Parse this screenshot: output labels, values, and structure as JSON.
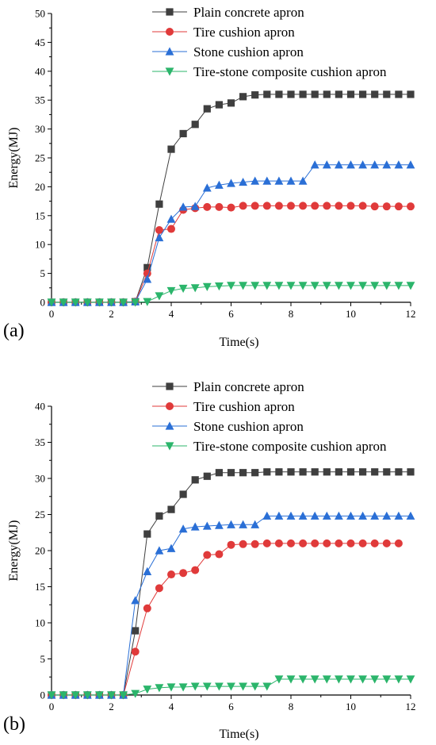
{
  "chart_data": [
    {
      "type": "line",
      "panel_label": "(a)",
      "xlabel": "Time(s)",
      "ylabel": "Energy(MJ)",
      "xlim": [
        0,
        12
      ],
      "ylim": [
        0,
        50
      ],
      "xticks": [
        0,
        2,
        4,
        6,
        8,
        10,
        12
      ],
      "yticks": [
        0,
        5,
        10,
        15,
        20,
        25,
        30,
        35,
        40,
        45,
        50
      ],
      "legend_position": "top-right",
      "grid": false,
      "x": [
        0,
        0.4,
        0.8,
        1.2,
        1.6,
        2.0,
        2.4,
        2.8,
        3.2,
        3.6,
        4.0,
        4.4,
        4.8,
        5.2,
        5.6,
        6.0,
        6.4,
        6.8,
        7.2,
        7.6,
        8.0,
        8.4,
        8.8,
        9.2,
        9.6,
        10.0,
        10.4,
        10.8,
        11.2,
        11.6,
        12.0
      ],
      "series": [
        {
          "name": "Plain concrete apron",
          "color": "#3f3f3f",
          "marker": "square",
          "values": [
            0,
            0,
            0,
            0,
            0,
            0,
            0,
            0.1,
            6.0,
            17.0,
            26.5,
            29.2,
            30.8,
            33.5,
            34.2,
            34.5,
            35.6,
            35.9,
            36.0,
            36.0,
            36.0,
            36.0,
            36.0,
            36.0,
            36.0,
            36.0,
            36.0,
            36.0,
            36.0,
            36.0,
            36.0
          ]
        },
        {
          "name": "Tire cushion apron",
          "color": "#e03a3a",
          "marker": "circle",
          "values": [
            0,
            0,
            0,
            0,
            0,
            0,
            0,
            0.1,
            5.0,
            12.5,
            12.7,
            16.0,
            16.3,
            16.5,
            16.5,
            16.4,
            16.7,
            16.7,
            16.7,
            16.7,
            16.7,
            16.7,
            16.7,
            16.7,
            16.7,
            16.7,
            16.7,
            16.6,
            16.6,
            16.6,
            16.6
          ]
        },
        {
          "name": "Stone cushion apron",
          "color": "#2a6fd6",
          "marker": "triangle-up",
          "values": [
            0,
            0,
            0,
            0,
            0,
            0,
            0,
            0.1,
            4.0,
            11.2,
            14.4,
            16.5,
            16.6,
            19.8,
            20.3,
            20.6,
            20.8,
            21.0,
            21.0,
            21.0,
            21.0,
            21.0,
            23.8,
            23.8,
            23.8,
            23.8,
            23.8,
            23.8,
            23.8,
            23.8,
            23.8
          ]
        },
        {
          "name": "Tire-stone composite cushion apron",
          "color": "#2bb56b",
          "marker": "triangle-down",
          "values": [
            0,
            0,
            0,
            0,
            0,
            0,
            0,
            0,
            0.1,
            1.1,
            2.0,
            2.4,
            2.5,
            2.7,
            2.8,
            2.9,
            2.9,
            2.9,
            2.9,
            2.9,
            2.9,
            2.9,
            2.9,
            2.9,
            2.9,
            2.9,
            2.9,
            2.9,
            2.9,
            2.9,
            2.9
          ]
        }
      ]
    },
    {
      "type": "line",
      "panel_label": "(b)",
      "xlabel": "Time(s)",
      "ylabel": "Energy(MJ)",
      "xlim": [
        0,
        12
      ],
      "ylim": [
        0,
        40
      ],
      "xticks": [
        0,
        2,
        4,
        6,
        8,
        10,
        12
      ],
      "yticks": [
        0,
        5,
        10,
        15,
        20,
        25,
        30,
        35,
        40
      ],
      "legend_position": "top-right",
      "grid": false,
      "x": [
        0,
        0.4,
        0.8,
        1.2,
        1.6,
        2.0,
        2.4,
        2.8,
        3.2,
        3.6,
        4.0,
        4.4,
        4.8,
        5.2,
        5.6,
        6.0,
        6.4,
        6.8,
        7.2,
        7.6,
        8.0,
        8.4,
        8.8,
        9.2,
        9.6,
        10.0,
        10.4,
        10.8,
        11.2,
        11.6,
        12.0
      ],
      "series": [
        {
          "name": "Plain concrete apron",
          "color": "#3f3f3f",
          "marker": "square",
          "values": [
            0,
            0,
            0,
            0,
            0,
            0,
            0,
            8.9,
            22.3,
            24.8,
            25.7,
            27.8,
            29.8,
            30.3,
            30.8,
            30.8,
            30.8,
            30.8,
            30.9,
            30.9,
            30.9,
            30.9,
            30.9,
            30.9,
            30.9,
            30.9,
            30.9,
            30.9,
            30.9,
            30.9,
            30.9
          ]
        },
        {
          "name": "Tire cushion apron",
          "color": "#e03a3a",
          "marker": "circle",
          "values": [
            0,
            0,
            0,
            0,
            0,
            0,
            0,
            6.0,
            12.0,
            14.8,
            16.7,
            16.9,
            17.3,
            19.4,
            19.5,
            20.8,
            20.9,
            20.9,
            21.0,
            21.0,
            21.0,
            21.0,
            21.0,
            21.0,
            21.0,
            21.0,
            21.0,
            21.0,
            21.0,
            21.0,
            null
          ]
        },
        {
          "name": "Stone cushion apron",
          "color": "#2a6fd6",
          "marker": "triangle-up",
          "values": [
            0,
            0,
            0,
            0,
            0,
            0,
            0,
            13.1,
            17.1,
            20.0,
            20.3,
            23.0,
            23.3,
            23.4,
            23.5,
            23.6,
            23.6,
            23.6,
            24.8,
            24.8,
            24.8,
            24.8,
            24.8,
            24.8,
            24.8,
            24.8,
            24.8,
            24.8,
            24.8,
            24.8,
            24.8
          ]
        },
        {
          "name": "Tire-stone composite cushion apron",
          "color": "#2bb56b",
          "marker": "triangle-down",
          "values": [
            0,
            0,
            0,
            0,
            0,
            0,
            0,
            0.2,
            0.8,
            1.0,
            1.1,
            1.1,
            1.2,
            1.2,
            1.2,
            1.2,
            1.2,
            1.2,
            1.2,
            2.2,
            2.2,
            2.2,
            2.2,
            2.2,
            2.2,
            2.2,
            2.2,
            2.2,
            2.2,
            2.2,
            2.2
          ]
        }
      ]
    }
  ]
}
